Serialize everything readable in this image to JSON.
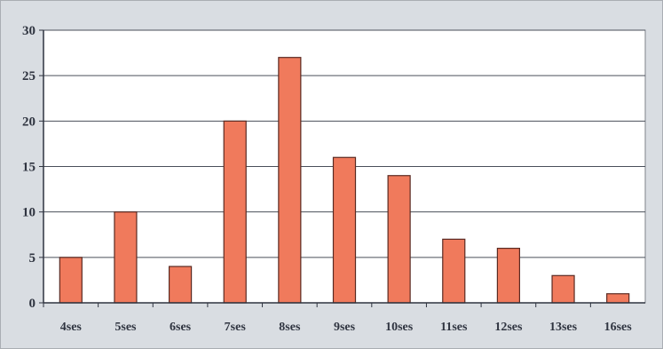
{
  "chart_data": {
    "type": "bar",
    "title": "",
    "xlabel": "",
    "ylabel": "",
    "categories": [
      "4ses",
      "5ses",
      "6ses",
      "7ses",
      "8ses",
      "9ses",
      "10ses",
      "11ses",
      "12ses",
      "13ses",
      "16ses"
    ],
    "values": [
      5,
      10,
      4,
      20,
      27,
      16,
      14,
      7,
      6,
      3,
      1
    ],
    "ylim": [
      0,
      30
    ],
    "yticks": [
      "0",
      "5",
      "10",
      "15",
      "20",
      "25",
      "30"
    ],
    "grid": true,
    "legend": "none",
    "colors": {
      "bar_fill": "#f07a5c",
      "bar_stroke": "#5a2a22",
      "plot_background": "#ffffff",
      "frame_background": "#d9dde2",
      "gridline": "#4a4f5a",
      "axis": "#2f3440"
    }
  }
}
